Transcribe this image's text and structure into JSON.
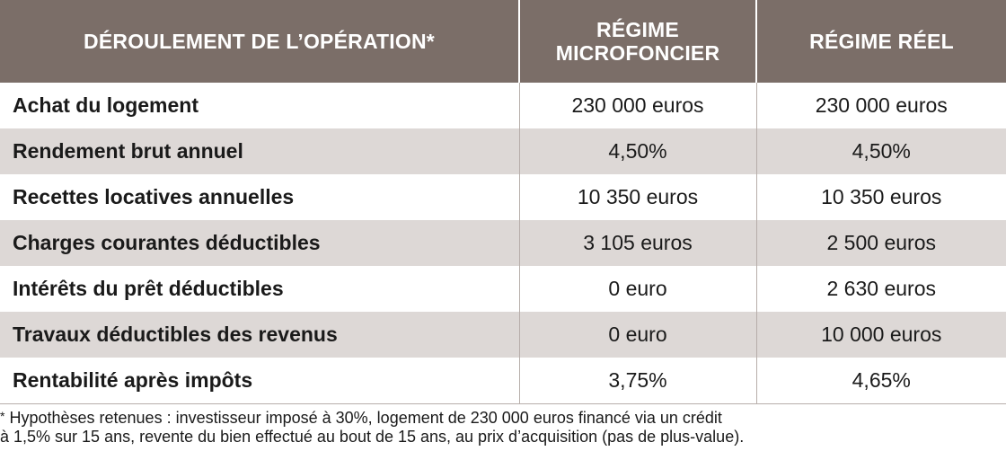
{
  "header": {
    "col1": "DÉROULEMENT DE L’OPÉRATION*",
    "col2_line1": "RÉGIME",
    "col2_line2": "MICROFONCIER",
    "col3": "RÉGIME RÉEL"
  },
  "rows": [
    {
      "label": "Achat du logement",
      "micro": "230 000 euros",
      "reel": "230 000 euros"
    },
    {
      "label": "Rendement brut annuel",
      "micro": "4,50%",
      "reel": "4,50%"
    },
    {
      "label": "Recettes locatives annuelles",
      "micro": "10 350 euros",
      "reel": "10 350 euros"
    },
    {
      "label": "Charges courantes déductibles",
      "micro": "3 105 euros",
      "reel": "2 500 euros"
    },
    {
      "label": "Intérêts du prêt déductibles",
      "micro": "0 euro",
      "reel": "2 630 euros"
    },
    {
      "label": "Travaux déductibles des revenus",
      "micro": "0 euro",
      "reel": "10 000 euros"
    },
    {
      "label": "Rentabilité après impôts",
      "micro": "3,75%",
      "reel": "4,65%"
    }
  ],
  "footnote": {
    "star": "*",
    "line1": "Hypothèses retenues : investisseur imposé à 30%, logement de 230 000 euros financé via un crédit",
    "line2": "à 1,5% sur 15 ans, revente du bien effectué au bout de 15 ans, au prix d’acquisition (pas de plus-value)."
  },
  "colors": {
    "header_bg": "#7b6e68",
    "stripe_bg": "#ddd8d6",
    "header_text": "#ffffff"
  }
}
